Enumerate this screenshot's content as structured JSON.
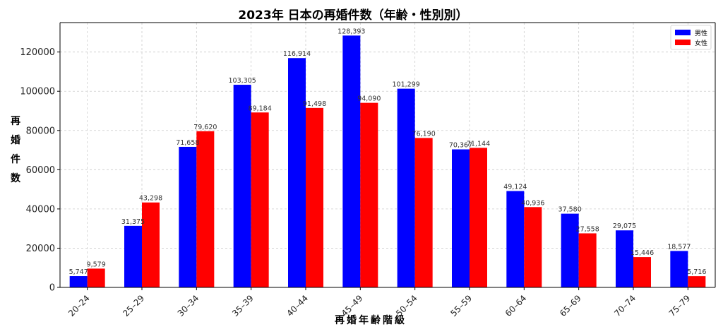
{
  "chart_data": {
    "type": "bar",
    "title": "2023年 日本の再婚件数（年齢・性別別）",
    "xlabel": "再婚年齢階級",
    "ylabel": "再婚件数",
    "categories": [
      "20–24",
      "25–29",
      "30–34",
      "35–39",
      "40–44",
      "45–49",
      "50–54",
      "55–59",
      "60–64",
      "65–69",
      "70–74",
      "75–79"
    ],
    "series": [
      {
        "name": "男性",
        "color": "#0000ff",
        "values": [
          5747,
          31375,
          71658,
          103305,
          116914,
          128393,
          101299,
          70367,
          49124,
          37580,
          29075,
          18577
        ],
        "labels": [
          "5,747",
          "31,375",
          "71,658",
          "103,305",
          "116,914",
          "128,393",
          "101,299",
          "70,367",
          "49,124",
          "37,580",
          "29,075",
          "18,577"
        ]
      },
      {
        "name": "女性",
        "color": "#ff0000",
        "values": [
          9579,
          43298,
          79620,
          89184,
          91498,
          94090,
          76190,
          71144,
          40936,
          27558,
          15446,
          5716
        ],
        "labels": [
          "9,579",
          "43,298",
          "79,620",
          "89,184",
          "91,498",
          "94,090",
          "76,190",
          "71,144",
          "40,936",
          "27,558",
          "15,446",
          "5,716"
        ]
      }
    ],
    "ylim": [
      0,
      135000
    ],
    "yticks": [
      0,
      20000,
      40000,
      60000,
      80000,
      100000,
      120000
    ],
    "ytick_labels": [
      "0",
      "20000",
      "40000",
      "60000",
      "80000",
      "100000",
      "120000"
    ],
    "grid": true,
    "legend": "top-right"
  }
}
